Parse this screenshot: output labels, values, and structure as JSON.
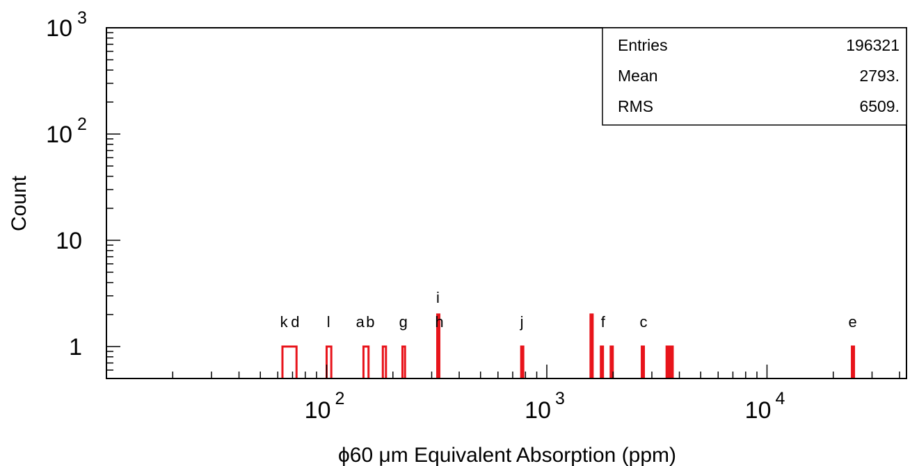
{
  "chart_data": {
    "type": "bar",
    "xlabel": "ϕ60 μm Equivalent Absorption (ppm)",
    "ylabel": "Count",
    "x_scale": "log",
    "y_scale": "log",
    "xlim": [
      10,
      43000
    ],
    "ylim": [
      0.5,
      1000
    ],
    "x_ticks": [
      {
        "value": 100,
        "base": "10",
        "exp": "2"
      },
      {
        "value": 1000,
        "base": "10",
        "exp": "3"
      },
      {
        "value": 10000,
        "base": "10",
        "exp": "4"
      }
    ],
    "y_ticks": [
      {
        "value": 1,
        "base": "1",
        "exp": ""
      },
      {
        "value": 10,
        "base": "10",
        "exp": ""
      },
      {
        "value": 100,
        "base": "10",
        "exp": "2"
      },
      {
        "value": 1000,
        "base": "10",
        "exp": "3"
      }
    ],
    "bins": [
      {
        "x0": 63,
        "x1": 73,
        "count": 1
      },
      {
        "x0": 100,
        "x1": 105,
        "count": 1
      },
      {
        "x0": 147,
        "x1": 155,
        "count": 1
      },
      {
        "x0": 180,
        "x1": 186,
        "count": 1
      },
      {
        "x0": 221,
        "x1": 227,
        "count": 1
      },
      {
        "x0": 318,
        "x1": 322,
        "count": 2
      },
      {
        "x0": 765,
        "x1": 775,
        "count": 1
      },
      {
        "x0": 1580,
        "x1": 1610,
        "count": 2
      },
      {
        "x0": 1760,
        "x1": 1790,
        "count": 1
      },
      {
        "x0": 1950,
        "x1": 1980,
        "count": 1
      },
      {
        "x0": 2700,
        "x1": 2750,
        "count": 1
      },
      {
        "x0": 3500,
        "x1": 3560,
        "count": 1
      },
      {
        "x0": 3650,
        "x1": 3720,
        "count": 1
      },
      {
        "x0": 24300,
        "x1": 24700,
        "count": 1
      }
    ],
    "annotations": [
      {
        "text": "k",
        "x": 64,
        "level": 1
      },
      {
        "text": "d",
        "x": 72,
        "level": 1
      },
      {
        "text": "l",
        "x": 102,
        "level": 1
      },
      {
        "text": "a",
        "x": 142,
        "level": 1
      },
      {
        "text": "b",
        "x": 158,
        "level": 1
      },
      {
        "text": "g",
        "x": 223,
        "level": 1
      },
      {
        "text": "i",
        "x": 320,
        "level": 2
      },
      {
        "text": "h",
        "x": 325,
        "level": 1
      },
      {
        "text": "j",
        "x": 770,
        "level": 1
      },
      {
        "text": "f",
        "x": 1800,
        "level": 1
      },
      {
        "text": "c",
        "x": 2750,
        "level": 1
      },
      {
        "text": "e",
        "x": 24500,
        "level": 1
      }
    ],
    "stats": [
      {
        "label": "Entries",
        "value": "196321"
      },
      {
        "label": "Mean",
        "value": "2793."
      },
      {
        "label": "RMS",
        "value": "6509."
      }
    ],
    "colors": {
      "histogram": "#e8141b",
      "axis": "#000000"
    },
    "grid": false
  }
}
